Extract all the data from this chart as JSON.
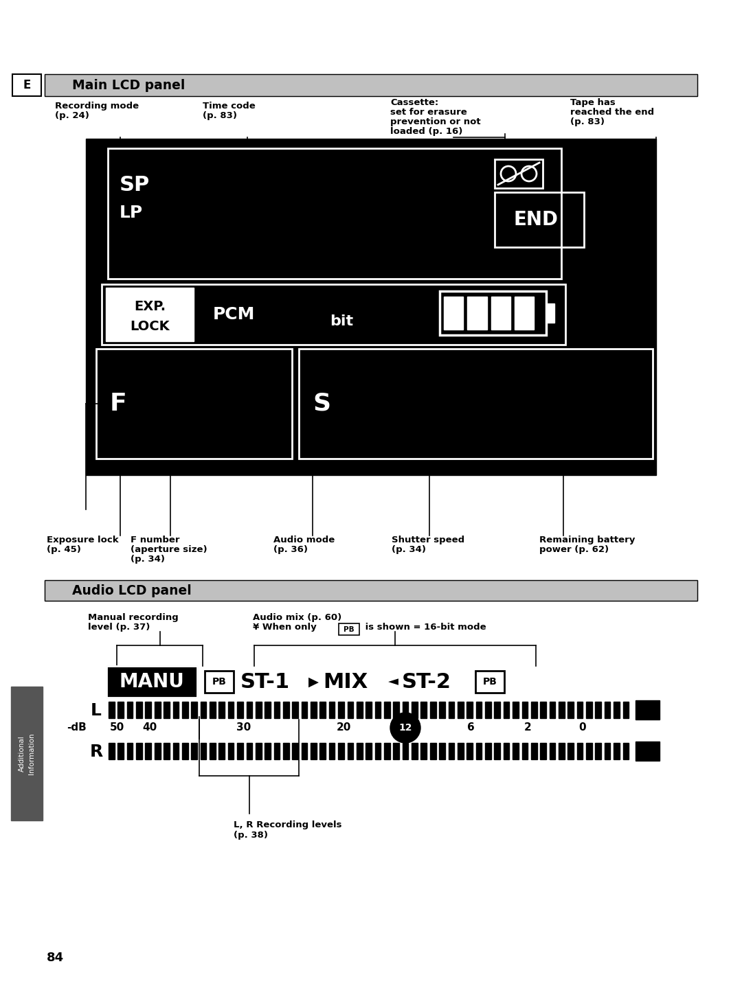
{
  "bg_color": "#ffffff",
  "page_width": 10.8,
  "page_height": 14.39,
  "main_panel_header": "Main LCD panel",
  "audio_panel_header": "Audio LCD panel",
  "e_label": "E",
  "page_number": "84"
}
